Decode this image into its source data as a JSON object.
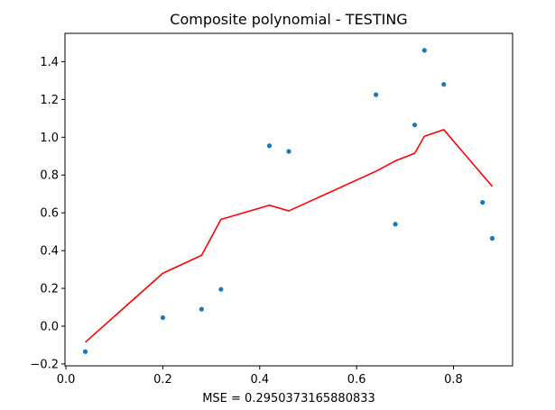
{
  "chart_data": {
    "type": "scatter",
    "title": "Composite polynomial - TESTING",
    "xlabel": "MSE = 0.2950373165880833",
    "ylabel": "",
    "xlim": [
      -0.002,
      0.922
    ],
    "ylim": [
      -0.21,
      1.55
    ],
    "xticks": [
      0.0,
      0.2,
      0.4,
      0.6,
      0.8
    ],
    "xtick_labels": [
      "0.0",
      "0.2",
      "0.4",
      "0.6",
      "0.8"
    ],
    "yticks": [
      -0.2,
      0.0,
      0.2,
      0.4,
      0.6,
      0.8,
      1.0,
      1.2,
      1.4
    ],
    "ytick_labels": [
      "−0.2",
      "0.0",
      "0.2",
      "0.4",
      "0.6",
      "0.8",
      "1.0",
      "1.2",
      "1.4"
    ],
    "grid": false,
    "series": [
      {
        "type": "scatter",
        "color": "#1f77b4",
        "x": [
          0.04,
          0.2,
          0.28,
          0.32,
          0.42,
          0.46,
          0.64,
          0.68,
          0.72,
          0.74,
          0.78,
          0.86,
          0.88
        ],
        "y": [
          -0.135,
          0.045,
          0.09,
          0.195,
          0.955,
          0.925,
          1.225,
          0.54,
          1.065,
          1.46,
          1.28,
          0.655,
          0.465
        ]
      },
      {
        "type": "line",
        "color": "#ff0000",
        "x": [
          0.04,
          0.2,
          0.28,
          0.32,
          0.42,
          0.46,
          0.64,
          0.68,
          0.72,
          0.74,
          0.78,
          0.86,
          0.88
        ],
        "y": [
          -0.085,
          0.28,
          0.375,
          0.565,
          0.64,
          0.61,
          0.82,
          0.875,
          0.915,
          1.005,
          1.04,
          0.8,
          0.74
        ]
      }
    ]
  }
}
